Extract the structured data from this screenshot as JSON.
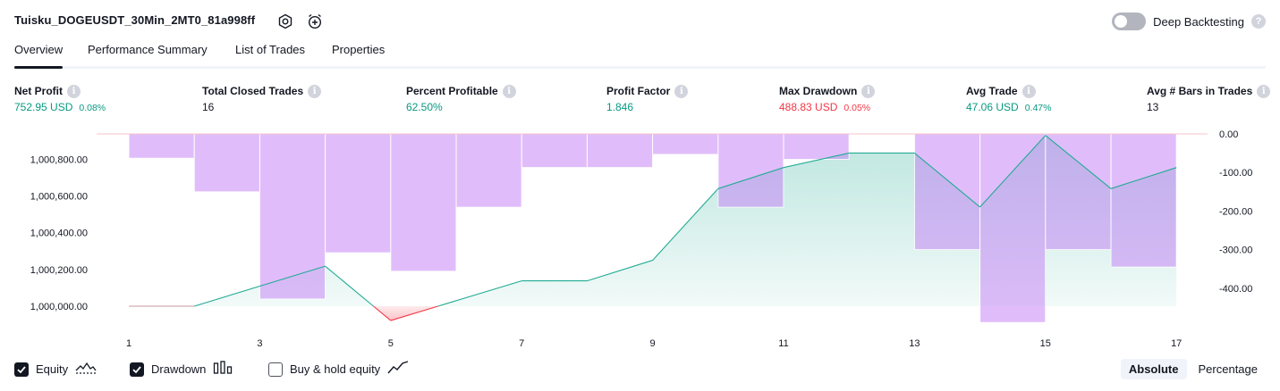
{
  "header": {
    "title": "Tuisku_DOGEUSDT_30Min_2MT0_81a998ff",
    "deep_backtesting_label": "Deep Backtesting",
    "deep_backtesting_enabled": false,
    "help_glyph": "?"
  },
  "tabs": [
    {
      "label": "Overview",
      "active": true
    },
    {
      "label": "Performance Summary",
      "active": false
    },
    {
      "label": "List of Trades",
      "active": false
    },
    {
      "label": "Properties",
      "active": false
    }
  ],
  "info_glyph": "i",
  "metrics": [
    {
      "label": "Net Profit",
      "value": "752.95 USD",
      "sub": "0.08%",
      "color": "#089981"
    },
    {
      "label": "Total Closed Trades",
      "value": "16",
      "sub": "",
      "color": "#131722"
    },
    {
      "label": "Percent Profitable",
      "value": "62.50%",
      "sub": "",
      "color": "#089981"
    },
    {
      "label": "Profit Factor",
      "value": "1.846",
      "sub": "",
      "color": "#089981"
    },
    {
      "label": "Max Drawdown",
      "value": "488.83 USD",
      "sub": "0.05%",
      "color": "#f23645"
    },
    {
      "label": "Avg Trade",
      "value": "47.06 USD",
      "sub": "0.47%",
      "color": "#089981"
    },
    {
      "label": "Avg # Bars in Trades",
      "value": "13",
      "sub": "",
      "color": "#131722"
    }
  ],
  "chart_data": {
    "type": "line",
    "x_ticks": [
      "1",
      "3",
      "5",
      "7",
      "9",
      "11",
      "13",
      "15",
      "17"
    ],
    "left_axis_ticks": [
      "1,000,000.00",
      "1,000,200.00",
      "1,000,400.00",
      "1,000,600.00",
      "1,000,800.00"
    ],
    "right_axis_ticks": [
      "0.00",
      "-100.00",
      "-200.00",
      "-300.00",
      "-400.00"
    ],
    "left_ylim": [
      999980,
      1000900
    ],
    "right_ylim": [
      -495,
      0
    ],
    "xlim": [
      0.5,
      17.5
    ],
    "series": [
      {
        "name": "Equity",
        "type": "area",
        "color": "#22ab94",
        "negative_color": "#f23645",
        "points": [
          [
            1,
            1000000
          ],
          [
            2,
            1000000
          ],
          [
            4,
            1000218
          ],
          [
            5,
            999922
          ],
          [
            7,
            1000138
          ],
          [
            8,
            1000138
          ],
          [
            9,
            1000250
          ],
          [
            10,
            1000640
          ],
          [
            11,
            1000755
          ],
          [
            12,
            1000834
          ],
          [
            13,
            1000834
          ],
          [
            14,
            1000540
          ],
          [
            15,
            1000930
          ],
          [
            16,
            1000640
          ],
          [
            17,
            1000755
          ]
        ]
      },
      {
        "name": "Drawdown",
        "type": "bar",
        "color": "#c17bf6",
        "bars": [
          [
            2,
            -63
          ],
          [
            3,
            -150
          ],
          [
            4,
            -428
          ],
          [
            5,
            -308
          ],
          [
            6,
            -356
          ],
          [
            7,
            -190
          ],
          [
            8,
            -87
          ],
          [
            9,
            -87
          ],
          [
            10,
            -53
          ],
          [
            11,
            -190
          ],
          [
            12,
            -66
          ],
          [
            14,
            -300
          ],
          [
            15,
            -488.83
          ],
          [
            16,
            -300
          ],
          [
            17,
            -345
          ]
        ]
      }
    ],
    "grid": false
  },
  "legend": [
    {
      "label": "Equity",
      "checked": true,
      "icon": "area-chart-icon"
    },
    {
      "label": "Drawdown",
      "checked": true,
      "icon": "bar-chart-icon"
    },
    {
      "label": "Buy & hold equity",
      "checked": false,
      "icon": "line-chart-icon"
    }
  ],
  "view_modes": [
    {
      "label": "Absolute",
      "active": true
    },
    {
      "label": "Percentage",
      "active": false
    }
  ]
}
